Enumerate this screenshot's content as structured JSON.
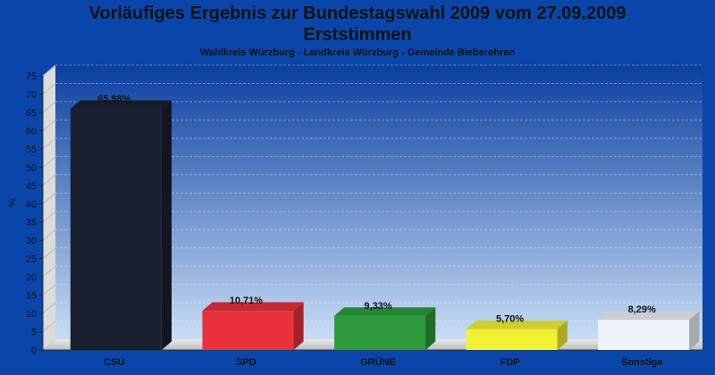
{
  "chart_data": {
    "type": "bar",
    "title": "Vorläufiges Ergebnis zur Bundestagswahl 2009 vom 27.09.2009",
    "title2": "Erststimmen",
    "subtitle": "Wahlkreis Würzburg - Landkreis Würzburg - Gemeinde Bieberehren",
    "ylabel": "%",
    "ylim": [
      0,
      75
    ],
    "yticks": [
      0,
      5,
      10,
      15,
      20,
      25,
      30,
      35,
      40,
      45,
      50,
      55,
      60,
      65,
      70,
      75
    ],
    "grid": true,
    "categories": [
      "CSU",
      "SPD",
      "GRÜNE",
      "FDP",
      "Sonstige"
    ],
    "values": [
      65.98,
      10.71,
      9.33,
      5.7,
      8.29
    ],
    "value_labels": [
      "65,98%",
      "10,71%",
      "9,33%",
      "5,70%",
      "8,29%"
    ],
    "colors": [
      "#1a2030",
      "#e8313a",
      "#2e9a3e",
      "#f2f235",
      "#eef2fb"
    ]
  }
}
